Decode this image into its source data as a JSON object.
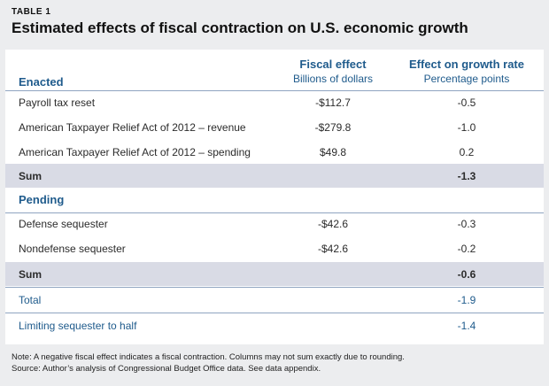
{
  "table_label": "TABLE 1",
  "title": "Estimated effects of fiscal contraction on U.S. economic growth",
  "columns": {
    "fiscal_effect": {
      "title": "Fiscal effect",
      "subtitle": "Billions of dollars"
    },
    "growth_rate": {
      "title": "Effect on growth rate",
      "subtitle": "Percentage points"
    }
  },
  "sections": {
    "enacted": {
      "label": "Enacted",
      "rows": [
        {
          "name": "Payroll tax reset",
          "fiscal": "-$112.7",
          "growth": "-0.5"
        },
        {
          "name": "American Taxpayer Relief Act of 2012 – revenue",
          "fiscal": "-$279.8",
          "growth": "-1.0"
        },
        {
          "name": "American Taxpayer Relief Act of 2012 – spending",
          "fiscal": "$49.8",
          "growth": "0.2"
        }
      ],
      "sum": {
        "label": "Sum",
        "growth": "-1.3"
      }
    },
    "pending": {
      "label": "Pending",
      "rows": [
        {
          "name": "Defense sequester",
          "fiscal": "-$42.6",
          "growth": "-0.3"
        },
        {
          "name": "Nondefense sequester",
          "fiscal": "-$42.6",
          "growth": "-0.2"
        }
      ],
      "sum": {
        "label": "Sum",
        "growth": "-0.6"
      }
    }
  },
  "total": {
    "label": "Total",
    "growth": "-1.9"
  },
  "limiting": {
    "label": "Limiting sequester to half",
    "growth": "-1.4"
  },
  "notes": {
    "note": "Note: A negative fiscal effect indicates a fiscal contraction. Columns may not sum exactly due to rounding.",
    "source": "Source: Author’s analysis of Congressional Budget Office data. See data appendix."
  }
}
